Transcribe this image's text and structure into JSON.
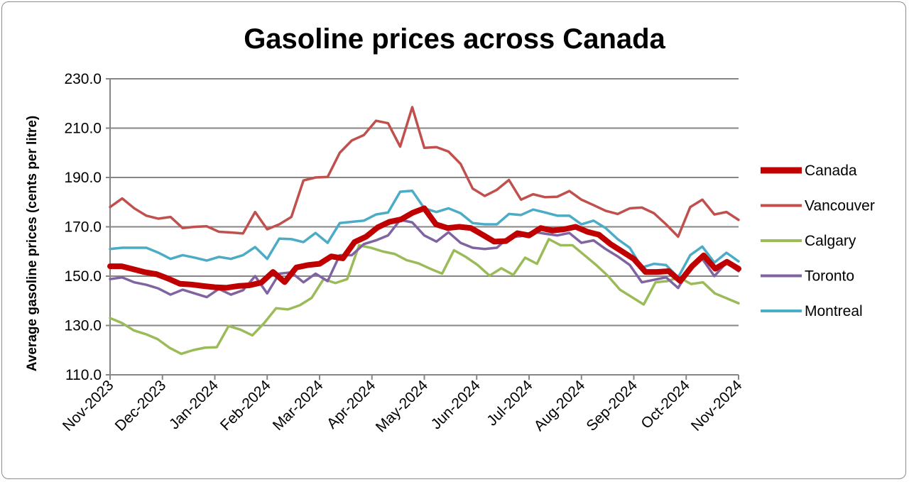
{
  "chart_data": {
    "type": "line",
    "title": "Gasoline prices across Canada",
    "xlabel": "",
    "ylabel": "Average gasoline prices (cents per litre)",
    "ylim": [
      110,
      230
    ],
    "yticks": [
      "110.0",
      "130.0",
      "150.0",
      "170.0",
      "190.0",
      "210.0",
      "230.0"
    ],
    "xticks": [
      "Nov-2023",
      "Dec-2023",
      "Jan-2024",
      "Feb-2024",
      "Mar-2024",
      "Apr-2024",
      "May-2024",
      "Jun-2024",
      "Jul-2024",
      "Aug-2024",
      "Sep-2024",
      "Oct-2024",
      "Nov-2024"
    ],
    "grid": "horizontal",
    "legend_position": "right",
    "series": [
      {
        "name": "Canada",
        "color": "#c00000",
        "width": 8,
        "values": [
          154.0,
          154.0,
          152.8,
          151.6,
          150.8,
          149.0,
          146.9,
          146.6,
          146.0,
          145.5,
          145.3,
          146.0,
          146.3,
          147.4,
          151.7,
          147.6,
          153.5,
          154.5,
          155.0,
          158.0,
          157.2,
          163.8,
          166.0,
          169.8,
          172.0,
          173.0,
          175.7,
          177.5,
          171.0,
          169.5,
          170.0,
          169.5,
          166.8,
          164.0,
          164.2,
          167.4,
          166.5,
          169.5,
          168.5,
          169.0,
          170.0,
          168.0,
          166.8,
          163.0,
          160.0,
          157.0,
          151.7,
          151.7,
          152.0,
          148.0,
          154.0,
          158.4,
          153.0,
          155.8,
          153.0
        ]
      },
      {
        "name": "Vancouver",
        "color": "#c0504d",
        "width": 3.5,
        "values": [
          178.0,
          181.5,
          177.5,
          174.5,
          173.3,
          174.0,
          169.5,
          170.0,
          170.2,
          168.0,
          167.7,
          167.3,
          176.0,
          169.0,
          171.0,
          174.0,
          188.8,
          190.0,
          190.2,
          200.0,
          205.0,
          207.2,
          213.0,
          212.0,
          202.5,
          218.5,
          202.0,
          202.3,
          200.5,
          195.5,
          185.5,
          182.5,
          185.0,
          189.0,
          181.0,
          183.2,
          182.0,
          182.2,
          184.5,
          181.0,
          178.8,
          176.5,
          175.2,
          177.5,
          177.8,
          175.5,
          171.0,
          166.0,
          178.0,
          181.0,
          175.0,
          176.0,
          172.8
        ]
      },
      {
        "name": "Calgary",
        "color": "#9bbb59",
        "width": 3.5,
        "values": [
          133.0,
          131.0,
          128.0,
          126.5,
          124.5,
          121.0,
          118.5,
          120.0,
          121.0,
          121.2,
          129.8,
          128.3,
          126.0,
          131.0,
          137.0,
          136.5,
          138.2,
          141.2,
          148.8,
          147.2,
          148.8,
          162.5,
          161.5,
          160.0,
          159.0,
          156.5,
          155.2,
          153.0,
          151.0,
          160.5,
          157.8,
          154.5,
          150.2,
          153.2,
          150.5,
          157.5,
          155.0,
          165.0,
          162.5,
          162.5,
          158.5,
          154.5,
          150.0,
          144.5,
          141.5,
          138.5,
          147.5,
          148.0,
          149.5,
          146.8,
          147.5,
          143.0,
          141.0,
          139.0
        ]
      },
      {
        "name": "Toronto",
        "color": "#8064a2",
        "width": 3.5,
        "values": [
          148.8,
          149.5,
          147.5,
          146.5,
          145.0,
          142.5,
          144.5,
          143.0,
          141.5,
          144.8,
          142.5,
          144.3,
          150.0,
          143.0,
          151.0,
          151.5,
          147.5,
          151.0,
          148.0,
          158.5,
          158.5,
          163.0,
          164.5,
          166.5,
          172.8,
          171.8,
          166.5,
          164.0,
          167.8,
          163.5,
          161.5,
          161.0,
          161.5,
          165.8,
          166.2,
          168.0,
          167.2,
          166.5,
          167.5,
          163.5,
          164.5,
          161.0,
          158.0,
          154.5,
          147.5,
          148.5,
          149.5,
          145.2,
          153.5,
          157.0,
          150.0,
          155.5,
          152.0
        ]
      },
      {
        "name": "Montreal",
        "color": "#4bacc6",
        "width": 3.5,
        "values": [
          161.0,
          161.5,
          161.5,
          161.5,
          159.5,
          157.0,
          158.5,
          157.5,
          156.3,
          157.8,
          157.0,
          158.5,
          161.8,
          157.0,
          165.2,
          165.0,
          163.8,
          167.5,
          163.5,
          171.5,
          172.0,
          172.5,
          175.0,
          175.8,
          184.2,
          184.6,
          177.5,
          176.0,
          177.5,
          175.5,
          171.5,
          171.0,
          171.0,
          175.2,
          174.8,
          177.0,
          175.8,
          174.5,
          174.5,
          171.0,
          172.5,
          169.5,
          165.0,
          161.5,
          153.5,
          155.0,
          154.5,
          149.5,
          158.5,
          162.0,
          155.5,
          159.5,
          156.0
        ]
      }
    ]
  }
}
